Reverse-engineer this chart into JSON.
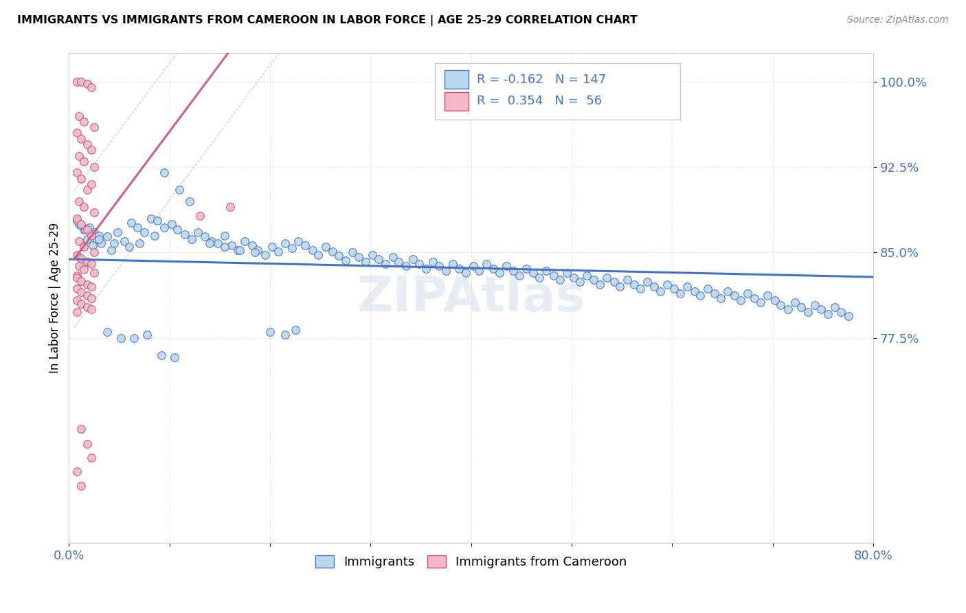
{
  "title": "IMMIGRANTS VS IMMIGRANTS FROM CAMEROON IN LABOR FORCE | AGE 25-29 CORRELATION CHART",
  "source": "Source: ZipAtlas.com",
  "ylabel": "In Labor Force | Age 25-29",
  "xlim": [
    0.0,
    0.8
  ],
  "ylim": [
    0.595,
    1.025
  ],
  "yticks": [
    0.775,
    0.85,
    0.925,
    1.0
  ],
  "ytick_labels": [
    "77.5%",
    "85.0%",
    "92.5%",
    "100.0%"
  ],
  "xticks": [
    0.0,
    0.1,
    0.2,
    0.3,
    0.4,
    0.5,
    0.6,
    0.7,
    0.8
  ],
  "xtick_labels": [
    "0.0%",
    "",
    "",
    "",
    "",
    "",
    "",
    "",
    "80.0%"
  ],
  "blue_fill": "#bdd7ee",
  "blue_edge": "#4472c4",
  "pink_fill": "#f4b8c8",
  "pink_edge": "#c05070",
  "blue_line_color": "#4472c4",
  "pink_line_color": "#d06080",
  "blue_R": -0.162,
  "blue_N": 147,
  "pink_R": 0.354,
  "pink_N": 56,
  "watermark": "ZIPAtlas",
  "blue_scatter_x": [
    0.015,
    0.025,
    0.01,
    0.03,
    0.02,
    0.008,
    0.018,
    0.022,
    0.012,
    0.028,
    0.032,
    0.016,
    0.024,
    0.038,
    0.042,
    0.048,
    0.055,
    0.062,
    0.068,
    0.075,
    0.082,
    0.088,
    0.095,
    0.102,
    0.108,
    0.115,
    0.122,
    0.128,
    0.135,
    0.142,
    0.148,
    0.155,
    0.162,
    0.168,
    0.175,
    0.182,
    0.188,
    0.195,
    0.202,
    0.208,
    0.215,
    0.222,
    0.228,
    0.235,
    0.242,
    0.248,
    0.255,
    0.262,
    0.268,
    0.275,
    0.282,
    0.288,
    0.295,
    0.302,
    0.308,
    0.315,
    0.322,
    0.328,
    0.335,
    0.342,
    0.348,
    0.355,
    0.362,
    0.368,
    0.375,
    0.382,
    0.388,
    0.395,
    0.402,
    0.408,
    0.415,
    0.422,
    0.428,
    0.435,
    0.442,
    0.448,
    0.455,
    0.462,
    0.468,
    0.475,
    0.482,
    0.488,
    0.495,
    0.502,
    0.508,
    0.515,
    0.522,
    0.528,
    0.535,
    0.542,
    0.548,
    0.555,
    0.562,
    0.568,
    0.575,
    0.582,
    0.588,
    0.595,
    0.602,
    0.608,
    0.615,
    0.622,
    0.628,
    0.635,
    0.642,
    0.648,
    0.655,
    0.662,
    0.668,
    0.675,
    0.682,
    0.688,
    0.695,
    0.702,
    0.708,
    0.715,
    0.722,
    0.728,
    0.735,
    0.742,
    0.748,
    0.755,
    0.762,
    0.768,
    0.775,
    0.03,
    0.045,
    0.06,
    0.07,
    0.085,
    0.095,
    0.11,
    0.12,
    0.14,
    0.155,
    0.17,
    0.185,
    0.2,
    0.215,
    0.225,
    0.038,
    0.052,
    0.065,
    0.078,
    0.092,
    0.105
  ],
  "blue_scatter_y": [
    0.87,
    0.868,
    0.875,
    0.865,
    0.872,
    0.878,
    0.862,
    0.866,
    0.874,
    0.86,
    0.858,
    0.87,
    0.856,
    0.864,
    0.852,
    0.868,
    0.86,
    0.876,
    0.872,
    0.868,
    0.88,
    0.878,
    0.872,
    0.875,
    0.87,
    0.866,
    0.862,
    0.868,
    0.864,
    0.86,
    0.858,
    0.865,
    0.856,
    0.852,
    0.86,
    0.856,
    0.852,
    0.848,
    0.855,
    0.851,
    0.858,
    0.854,
    0.86,
    0.856,
    0.852,
    0.848,
    0.855,
    0.851,
    0.847,
    0.843,
    0.85,
    0.846,
    0.842,
    0.848,
    0.844,
    0.84,
    0.846,
    0.842,
    0.838,
    0.844,
    0.84,
    0.836,
    0.842,
    0.838,
    0.834,
    0.84,
    0.836,
    0.832,
    0.838,
    0.834,
    0.84,
    0.836,
    0.832,
    0.838,
    0.834,
    0.83,
    0.836,
    0.832,
    0.828,
    0.834,
    0.83,
    0.826,
    0.832,
    0.828,
    0.824,
    0.83,
    0.826,
    0.822,
    0.828,
    0.824,
    0.82,
    0.826,
    0.822,
    0.818,
    0.824,
    0.82,
    0.816,
    0.822,
    0.818,
    0.814,
    0.82,
    0.816,
    0.812,
    0.818,
    0.814,
    0.81,
    0.816,
    0.812,
    0.808,
    0.814,
    0.81,
    0.806,
    0.812,
    0.808,
    0.804,
    0.8,
    0.806,
    0.802,
    0.798,
    0.804,
    0.8,
    0.796,
    0.802,
    0.798,
    0.794,
    0.862,
    0.858,
    0.855,
    0.858,
    0.865,
    0.92,
    0.905,
    0.895,
    0.858,
    0.855,
    0.852,
    0.85,
    0.78,
    0.778,
    0.782,
    0.78,
    0.775,
    0.775,
    0.778,
    0.76,
    0.758
  ],
  "pink_scatter_x": [
    0.008,
    0.012,
    0.018,
    0.022,
    0.01,
    0.015,
    0.025,
    0.008,
    0.012,
    0.018,
    0.022,
    0.01,
    0.015,
    0.025,
    0.008,
    0.012,
    0.018,
    0.022,
    0.01,
    0.015,
    0.025,
    0.008,
    0.012,
    0.018,
    0.022,
    0.01,
    0.015,
    0.025,
    0.008,
    0.012,
    0.018,
    0.022,
    0.01,
    0.015,
    0.025,
    0.008,
    0.13,
    0.16,
    0.008,
    0.012,
    0.018,
    0.022,
    0.008,
    0.012,
    0.018,
    0.022,
    0.008,
    0.012,
    0.018,
    0.022,
    0.008,
    0.012,
    0.018,
    0.022,
    0.008,
    0.012
  ],
  "pink_scatter_y": [
    1.0,
    1.0,
    0.998,
    0.995,
    0.97,
    0.965,
    0.96,
    0.955,
    0.95,
    0.945,
    0.94,
    0.935,
    0.93,
    0.925,
    0.92,
    0.915,
    0.905,
    0.91,
    0.895,
    0.89,
    0.885,
    0.88,
    0.875,
    0.87,
    0.865,
    0.86,
    0.855,
    0.85,
    0.848,
    0.845,
    0.842,
    0.84,
    0.838,
    0.835,
    0.832,
    0.83,
    0.882,
    0.89,
    0.828,
    0.825,
    0.822,
    0.82,
    0.818,
    0.815,
    0.812,
    0.81,
    0.808,
    0.805,
    0.802,
    0.8,
    0.798,
    0.695,
    0.682,
    0.67,
    0.658,
    0.645
  ]
}
